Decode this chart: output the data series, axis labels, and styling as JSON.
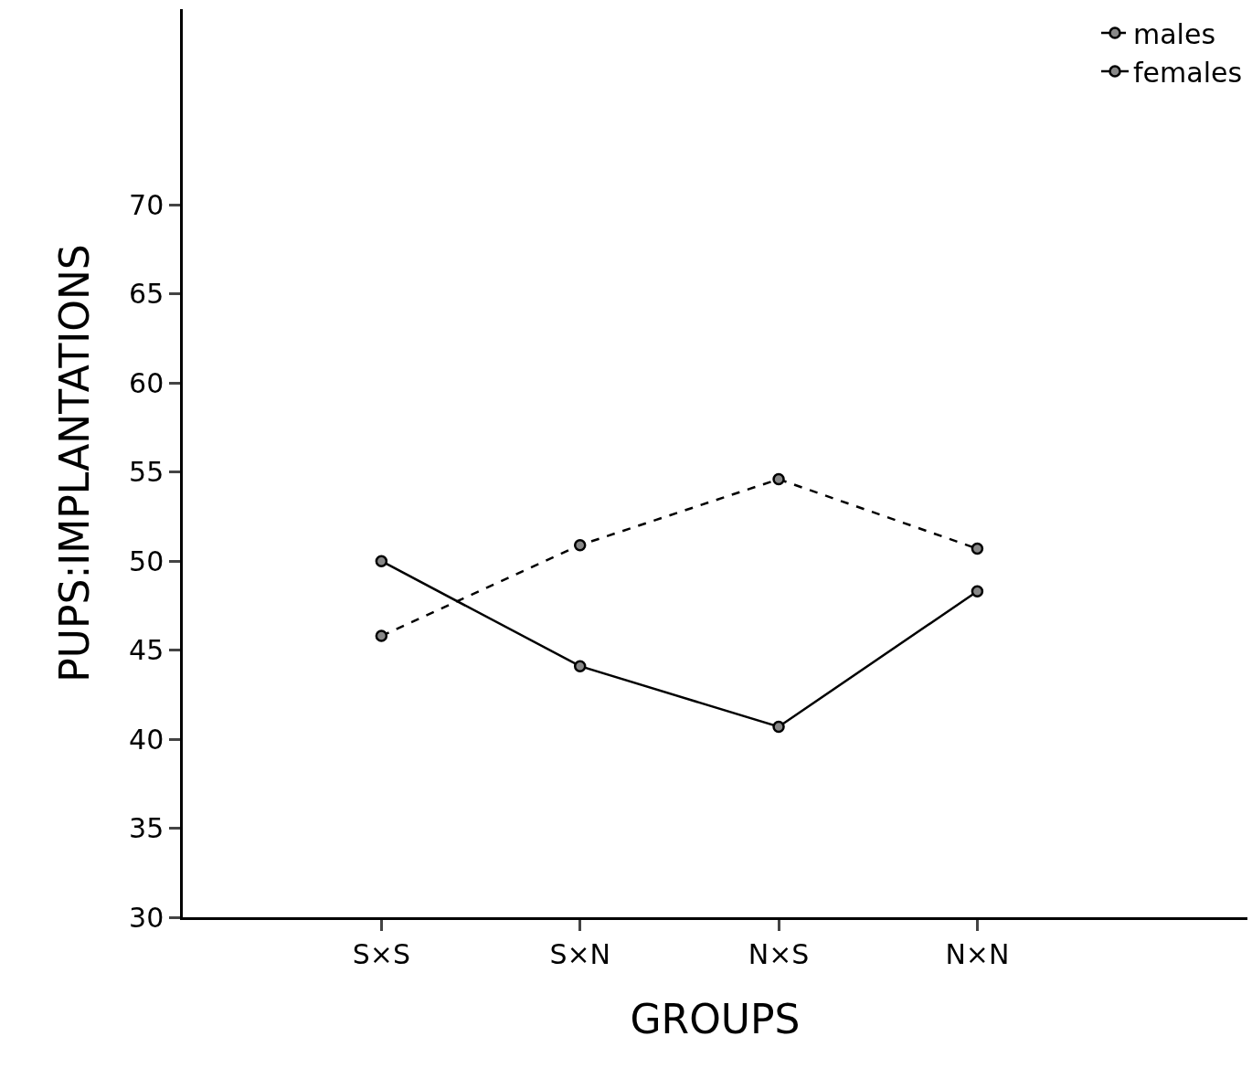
{
  "chart_data": {
    "type": "line",
    "xlabel": "GROUPS",
    "ylabel": "PUPS:IMPLANTATIONS",
    "categories": [
      "S×S",
      "S×N",
      "N×S",
      "N×N"
    ],
    "series": [
      {
        "name": "males",
        "color": "#000000",
        "line_style": "dashed",
        "values": [
          45.8,
          50.9,
          54.6,
          50.7
        ]
      },
      {
        "name": "females",
        "color": "#000000",
        "line_style": "solid",
        "values": [
          50,
          44.1,
          40.7,
          48.3
        ]
      }
    ],
    "ylim": [
      30,
      81
    ],
    "yticks": [
      30,
      35,
      40,
      45,
      50,
      55,
      60,
      65,
      70
    ],
    "marker": "circle",
    "grid": false,
    "legend": "top right"
  }
}
